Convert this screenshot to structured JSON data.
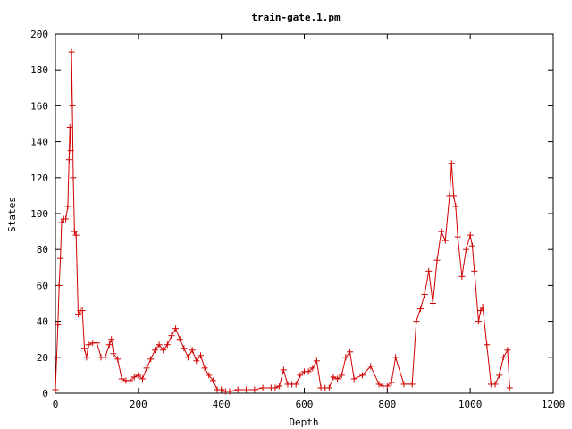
{
  "chart_data": {
    "type": "line",
    "title": "train-gate.1.pm",
    "xlabel": "Depth",
    "ylabel": "States",
    "xlim": [
      0,
      1200
    ],
    "ylim": [
      0,
      200
    ],
    "xticks": [
      0,
      200,
      400,
      600,
      800,
      1000,
      1200
    ],
    "yticks": [
      0,
      20,
      40,
      60,
      80,
      100,
      120,
      140,
      160,
      180,
      200
    ],
    "grid": false,
    "legend": "none",
    "marker": "plus",
    "color": "#d00000",
    "series": [
      {
        "x": [
          0,
          3,
          6,
          9,
          12,
          15,
          20,
          25,
          30,
          33,
          35,
          37,
          39,
          41,
          43,
          46,
          50,
          55,
          60,
          65,
          70,
          75,
          80,
          90,
          100,
          110,
          120,
          130,
          135,
          140,
          150,
          160,
          170,
          180,
          190,
          200,
          210,
          220,
          230,
          240,
          250,
          260,
          270,
          280,
          290,
          300,
          310,
          320,
          330,
          340,
          350,
          360,
          370,
          380,
          390,
          400,
          410,
          420,
          440,
          460,
          480,
          500,
          520,
          530,
          540,
          550,
          560,
          570,
          580,
          590,
          600,
          610,
          620,
          630,
          640,
          650,
          660,
          670,
          680,
          690,
          700,
          710,
          720,
          740,
          760,
          780,
          790,
          800,
          810,
          820,
          840,
          850,
          860,
          870,
          880,
          890,
          900,
          910,
          920,
          930,
          940,
          950,
          955,
          960,
          965,
          970,
          980,
          990,
          1000,
          1005,
          1010,
          1020,
          1025,
          1030,
          1040,
          1050,
          1060,
          1070,
          1080,
          1090,
          1095
        ],
        "y": [
          2,
          20,
          38,
          60,
          75,
          95,
          97,
          97,
          104,
          130,
          148,
          135,
          190,
          160,
          120,
          90,
          88,
          44,
          46,
          46,
          25,
          20,
          27,
          28,
          28,
          20,
          20,
          27,
          30,
          22,
          19,
          8,
          7,
          7,
          9,
          10,
          8,
          14,
          19,
          24,
          27,
          24,
          27,
          32,
          36,
          30,
          25,
          20,
          24,
          18,
          21,
          14,
          10,
          7,
          2,
          2,
          1,
          1,
          2,
          2,
          2,
          3,
          3,
          3,
          4,
          13,
          5,
          5,
          5,
          10,
          12,
          12,
          14,
          18,
          3,
          3,
          3,
          9,
          8,
          10,
          20,
          23,
          8,
          10,
          15,
          5,
          4,
          4,
          6,
          20,
          5,
          5,
          5,
          40,
          47,
          55,
          68,
          50,
          74,
          90,
          85,
          110,
          128,
          110,
          104,
          87,
          65,
          80,
          88,
          82,
          68,
          40,
          46,
          48,
          27,
          5,
          5,
          10,
          20,
          24,
          3
        ]
      }
    ]
  }
}
